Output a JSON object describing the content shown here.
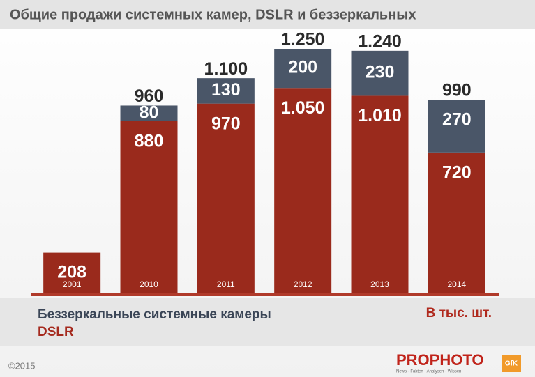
{
  "chart_data": {
    "type": "stacked-bar",
    "title": "Общие продажи системных камер, DSLR и беззеркальных",
    "categories": [
      "2001",
      "2010",
      "2011",
      "2012",
      "2013",
      "2014"
    ],
    "series": [
      {
        "name": "DSLR",
        "color": "#9a2a1c",
        "values": [
          208,
          880,
          970,
          1050,
          1010,
          720
        ],
        "value_labels": [
          "208",
          "880",
          "970",
          "1.050",
          "1.010",
          "720"
        ]
      },
      {
        "name": "Беззеркальные системные камеры",
        "color": "#4a5668",
        "values": [
          null,
          80,
          130,
          200,
          230,
          270
        ]
      }
    ],
    "totals": {
      "values": [
        null,
        960,
        1100,
        1250,
        1240,
        990
      ],
      "value_labels": [
        null,
        "960",
        "1.100",
        "1.250",
        "1.240",
        "990"
      ]
    },
    "unit_label": "В тыс. шт.",
    "ylim": [
      0,
      1300
    ]
  },
  "footer": {
    "copyright": "©2015",
    "brand": "PROPHOTO",
    "tagline": "News · Fakten · Analysen · Wissen",
    "partner": "GfK"
  }
}
